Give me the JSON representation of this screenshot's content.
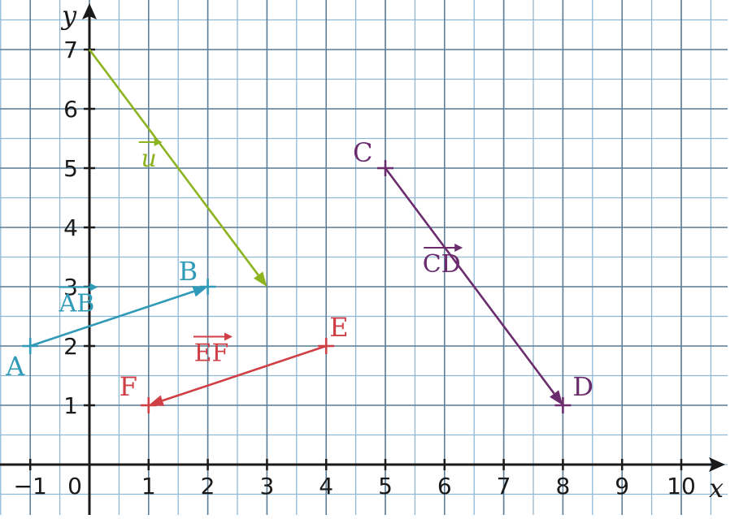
{
  "axes": {
    "x_label": "x",
    "y_label": "y",
    "x_ticks": [
      "−1",
      "0",
      "1",
      "2",
      "3",
      "4",
      "5",
      "6",
      "7",
      "8",
      "9",
      "10"
    ],
    "y_ticks": [
      "1",
      "2",
      "3",
      "4",
      "5",
      "6",
      "7"
    ],
    "x_range": [
      -1,
      10
    ],
    "y_range": [
      0,
      7
    ]
  },
  "points": [
    {
      "id": "A",
      "label": "A",
      "x": -1,
      "y": 2,
      "color": "#2f9bb8"
    },
    {
      "id": "B",
      "label": "B",
      "x": 2,
      "y": 3,
      "color": "#2f9bb8"
    },
    {
      "id": "C",
      "label": "C",
      "x": 5,
      "y": 5,
      "color": "#6b2c6e"
    },
    {
      "id": "D",
      "label": "D",
      "x": 8,
      "y": 1,
      "color": "#6b2c6e"
    },
    {
      "id": "E",
      "label": "E",
      "x": 4,
      "y": 2,
      "color": "#cf3f45"
    },
    {
      "id": "F",
      "label": "F",
      "x": 1,
      "y": 1,
      "color": "#cf3f45"
    }
  ],
  "vectors": [
    {
      "id": "u",
      "label": "u",
      "from": [
        0,
        7
      ],
      "to": [
        3,
        3
      ],
      "color": "#8db31f",
      "italic": true
    },
    {
      "id": "AB",
      "label": "AB",
      "from": [
        -1,
        2
      ],
      "to": [
        2,
        3
      ],
      "color": "#2f9bb8",
      "italic": false
    },
    {
      "id": "CD",
      "label": "CD",
      "from": [
        5,
        5
      ],
      "to": [
        8,
        1
      ],
      "color": "#6b2c6e",
      "italic": false
    },
    {
      "id": "EF",
      "label": "EF",
      "from": [
        4,
        2
      ],
      "to": [
        1,
        1
      ],
      "color": "#cf3f45",
      "italic": false
    }
  ],
  "colors": {
    "grid": "#8fb8d4",
    "grid_major": "#5f7f99",
    "axis": "#1a1a1a"
  }
}
